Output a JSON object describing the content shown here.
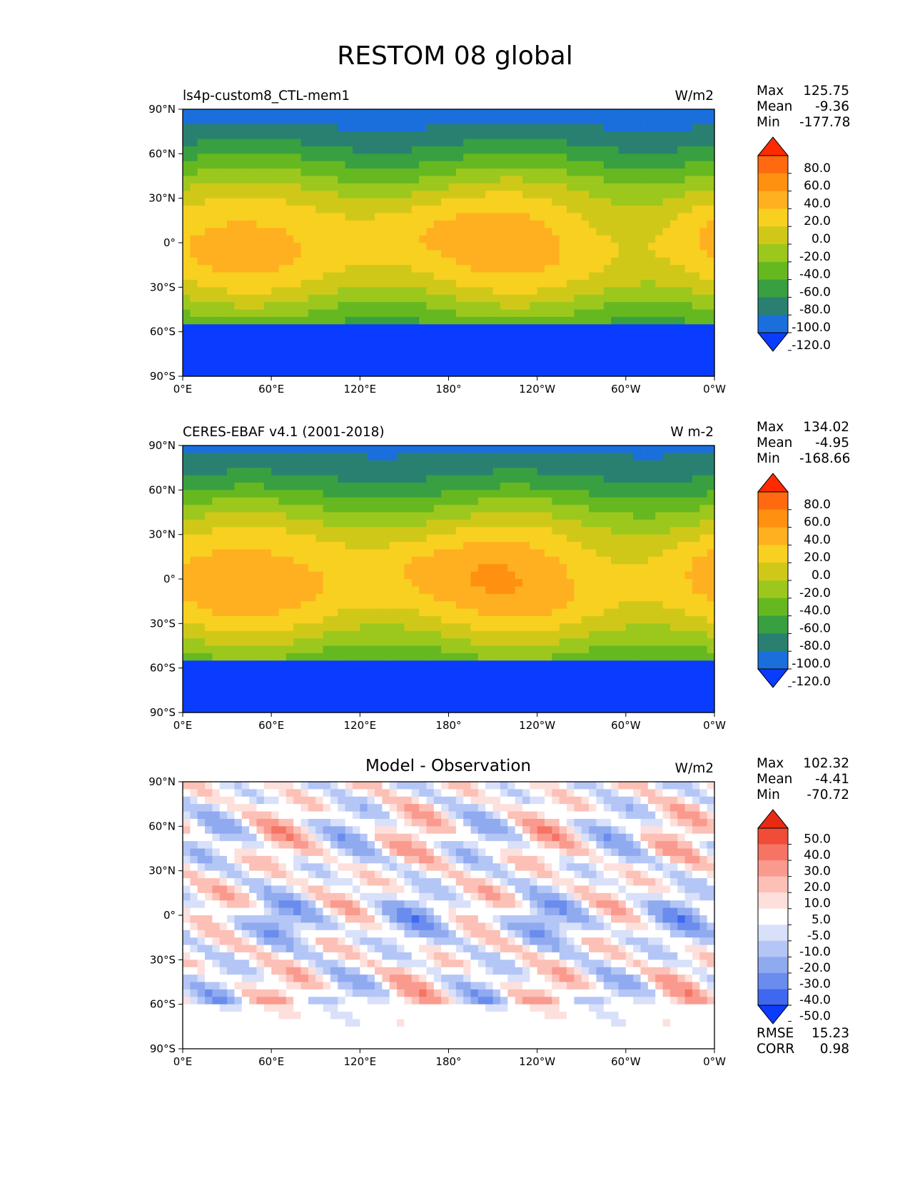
{
  "figure": {
    "title": "RESTOM 08 global"
  },
  "axes": {
    "y_ticks": [
      "90°N",
      "60°N",
      "30°N",
      "0°",
      "30°S",
      "60°S",
      "90°S"
    ],
    "x_ticks": [
      "0°E",
      "60°E",
      "120°E",
      "180°",
      "120°W",
      "60°W",
      "0°W"
    ]
  },
  "colors": {
    "full": [
      "#0a3cff",
      "#1a6fdc",
      "#2a8070",
      "#38a040",
      "#66b820",
      "#9cc81e",
      "#d0c818",
      "#f8d020",
      "#ffb020",
      "#ff9010",
      "#ff6a10",
      "#ff2a00"
    ],
    "diff": [
      "#0a3cff",
      "#3f68f0",
      "#6a8cee",
      "#90aaf0",
      "#b4c6f6",
      "#d8e0fa",
      "#ffffff",
      "#fde0dc",
      "#fcc0b6",
      "#fa9a8e",
      "#f67464",
      "#f04c38",
      "#e82a12"
    ]
  },
  "panels": [
    {
      "left_title": "ls4p-custom8_CTL-mem1",
      "units": "W/m2",
      "stats": {
        "max_label": "Max",
        "max": "125.75",
        "mean_label": "Mean",
        "mean": "-9.36",
        "min_label": "Min",
        "min": "-177.78"
      },
      "colorbar_labels": [
        "80.0",
        "60.0",
        "40.0",
        "20.0",
        "0.0",
        "-20.0",
        "-40.0",
        "-60.0",
        "-80.0",
        "-100.0",
        "-120.0"
      ]
    },
    {
      "left_title": "CERES-EBAF v4.1 (2001-2018)",
      "units": "W m-2",
      "stats": {
        "max_label": "Max",
        "max": "134.02",
        "mean_label": "Mean",
        "mean": "-4.95",
        "min_label": "Min",
        "min": "-168.66"
      },
      "colorbar_labels": [
        "80.0",
        "60.0",
        "40.0",
        "20.0",
        "0.0",
        "-20.0",
        "-40.0",
        "-60.0",
        "-80.0",
        "-100.0",
        "-120.0"
      ]
    },
    {
      "center_title": "Model - Observation",
      "units": "W/m2",
      "stats": {
        "max_label": "Max",
        "max": "102.32",
        "mean_label": "Mean",
        "mean": "-4.41",
        "min_label": "Min",
        "min": "-70.72"
      },
      "colorbar_labels": [
        "50.0",
        "40.0",
        "30.0",
        "20.0",
        "10.0",
        "5.0",
        "-5.0",
        "-10.0",
        "-20.0",
        "-30.0",
        "-40.0",
        "-50.0"
      ],
      "metrics": {
        "rmse_label": "RMSE",
        "rmse": "15.23",
        "corr_label": "CORR",
        "corr": "0.98"
      }
    }
  ],
  "chart_data": [
    {
      "type": "heatmap",
      "title": "ls4p-custom8_CTL-mem1",
      "units": "W/m2",
      "xlim": [
        0,
        360
      ],
      "ylim": [
        -90,
        90
      ],
      "contour_levels": [
        -120,
        -100,
        -80,
        -60,
        -40,
        -20,
        0,
        20,
        40,
        60,
        80
      ],
      "max": 125.75,
      "mean": -9.36,
      "min": -177.78
    },
    {
      "type": "heatmap",
      "title": "CERES-EBAF v4.1 (2001-2018)",
      "units": "W m-2",
      "xlim": [
        0,
        360
      ],
      "ylim": [
        -90,
        90
      ],
      "contour_levels": [
        -120,
        -100,
        -80,
        -60,
        -40,
        -20,
        0,
        20,
        40,
        60,
        80
      ],
      "max": 134.02,
      "mean": -4.95,
      "min": -168.66
    },
    {
      "type": "heatmap",
      "title": "Model - Observation",
      "units": "W/m2",
      "xlim": [
        0,
        360
      ],
      "ylim": [
        -90,
        90
      ],
      "contour_levels": [
        -50,
        -40,
        -30,
        -20,
        -10,
        -5,
        5,
        10,
        20,
        30,
        40,
        50
      ],
      "max": 102.32,
      "mean": -4.41,
      "min": -70.72,
      "rmse": 15.23,
      "corr": 0.98
    }
  ]
}
